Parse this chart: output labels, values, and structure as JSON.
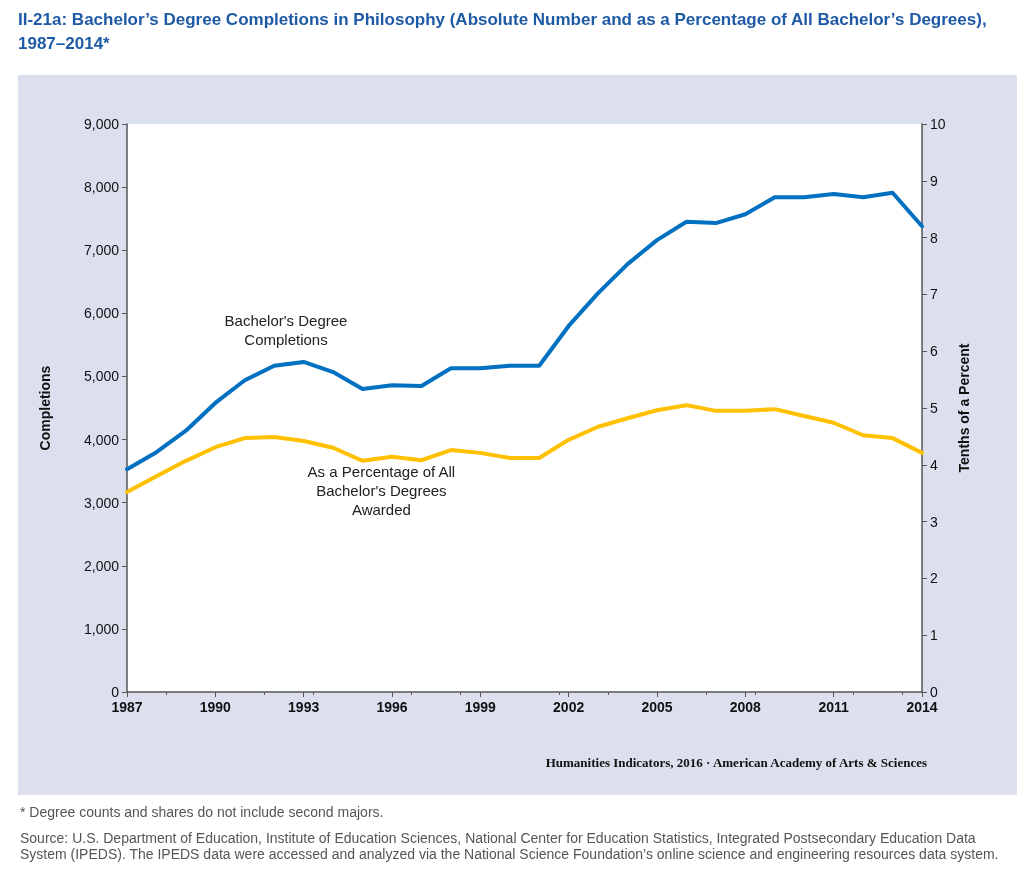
{
  "chart_data": {
    "type": "line",
    "title": "II-21a: Bachelor’s Degree Completions in Philosophy (Absolute Number and as a Percentage of All Bachelor’s Degrees), 1987–2014*",
    "ylabel": "Completions",
    "y2label": "Tenths of a Percent",
    "x": [
      1987,
      1988,
      1989,
      1990,
      1991,
      1992,
      1993,
      1994,
      1995,
      1996,
      1997,
      1998,
      1999,
      2000,
      2001,
      2002,
      2003,
      2004,
      2005,
      2006,
      2007,
      2008,
      2009,
      2010,
      2011,
      2012,
      2013,
      2014
    ],
    "series": [
      {
        "name": "Bachelor's Degree Completions",
        "color": "#0070c0",
        "values": [
          3530,
          3800,
          4140,
          4580,
          4940,
          5170,
          5230,
          5070,
          4800,
          4860,
          4850,
          5130,
          5130,
          5170,
          5170,
          5800,
          6320,
          6780,
          7160,
          7450,
          7430,
          7570,
          7840,
          7840,
          7890,
          7840,
          7910,
          7380
        ]
      },
      {
        "name": "As a Percentage of All Bachelor's Degrees Awarded",
        "color": "#ffc000",
        "axis": "y2",
        "values": [
          3.52,
          3.8,
          4.07,
          4.31,
          4.47,
          4.49,
          4.42,
          4.3,
          4.07,
          4.14,
          4.08,
          4.26,
          4.21,
          4.12,
          4.12,
          4.44,
          4.67,
          4.82,
          4.96,
          5.05,
          4.95,
          4.95,
          4.98,
          4.86,
          4.74,
          4.52,
          4.47,
          4.21
        ]
      }
    ],
    "xlim": [
      1987,
      2014
    ],
    "xticks": [
      1987,
      1990,
      1993,
      1996,
      1999,
      2002,
      2005,
      2008,
      2011,
      2014
    ],
    "ylim": [
      0,
      9000
    ],
    "yticks": [
      0,
      {
        "value": 1000,
        "label": "1,000"
      },
      {
        "value": 2000,
        "label": "2,000"
      },
      {
        "value": 3000,
        "label": "3,000"
      },
      {
        "value": 4000,
        "label": "4,000"
      },
      {
        "value": 5000,
        "label": "5,000"
      },
      {
        "value": 6000,
        "label": "6,000"
      },
      {
        "value": 7000,
        "label": "7,000"
      },
      {
        "value": 8000,
        "label": "8,000"
      },
      {
        "value": 9000,
        "label": "9,000"
      }
    ],
    "y2lim": [
      0,
      10
    ],
    "y2ticks": [
      0,
      1,
      2,
      3,
      4,
      5,
      6,
      7,
      8,
      9,
      10
    ],
    "grid": false,
    "legend": false,
    "marker": "none",
    "line_style": "solid",
    "annotations": [
      "Humanities Indicators, 2016 · American Academy of Arts & Sciences",
      "* Degree counts and shares do not include second majors.",
      "Source: U.S. Department of Education, Institute of Education Sciences, National Center for Education Statistics, Integrated Postsecondary Education Data System (IPEDS). The IPEDS data were accessed and analyzed via the National Science Foundation’s online science and engineering resources data system."
    ]
  }
}
